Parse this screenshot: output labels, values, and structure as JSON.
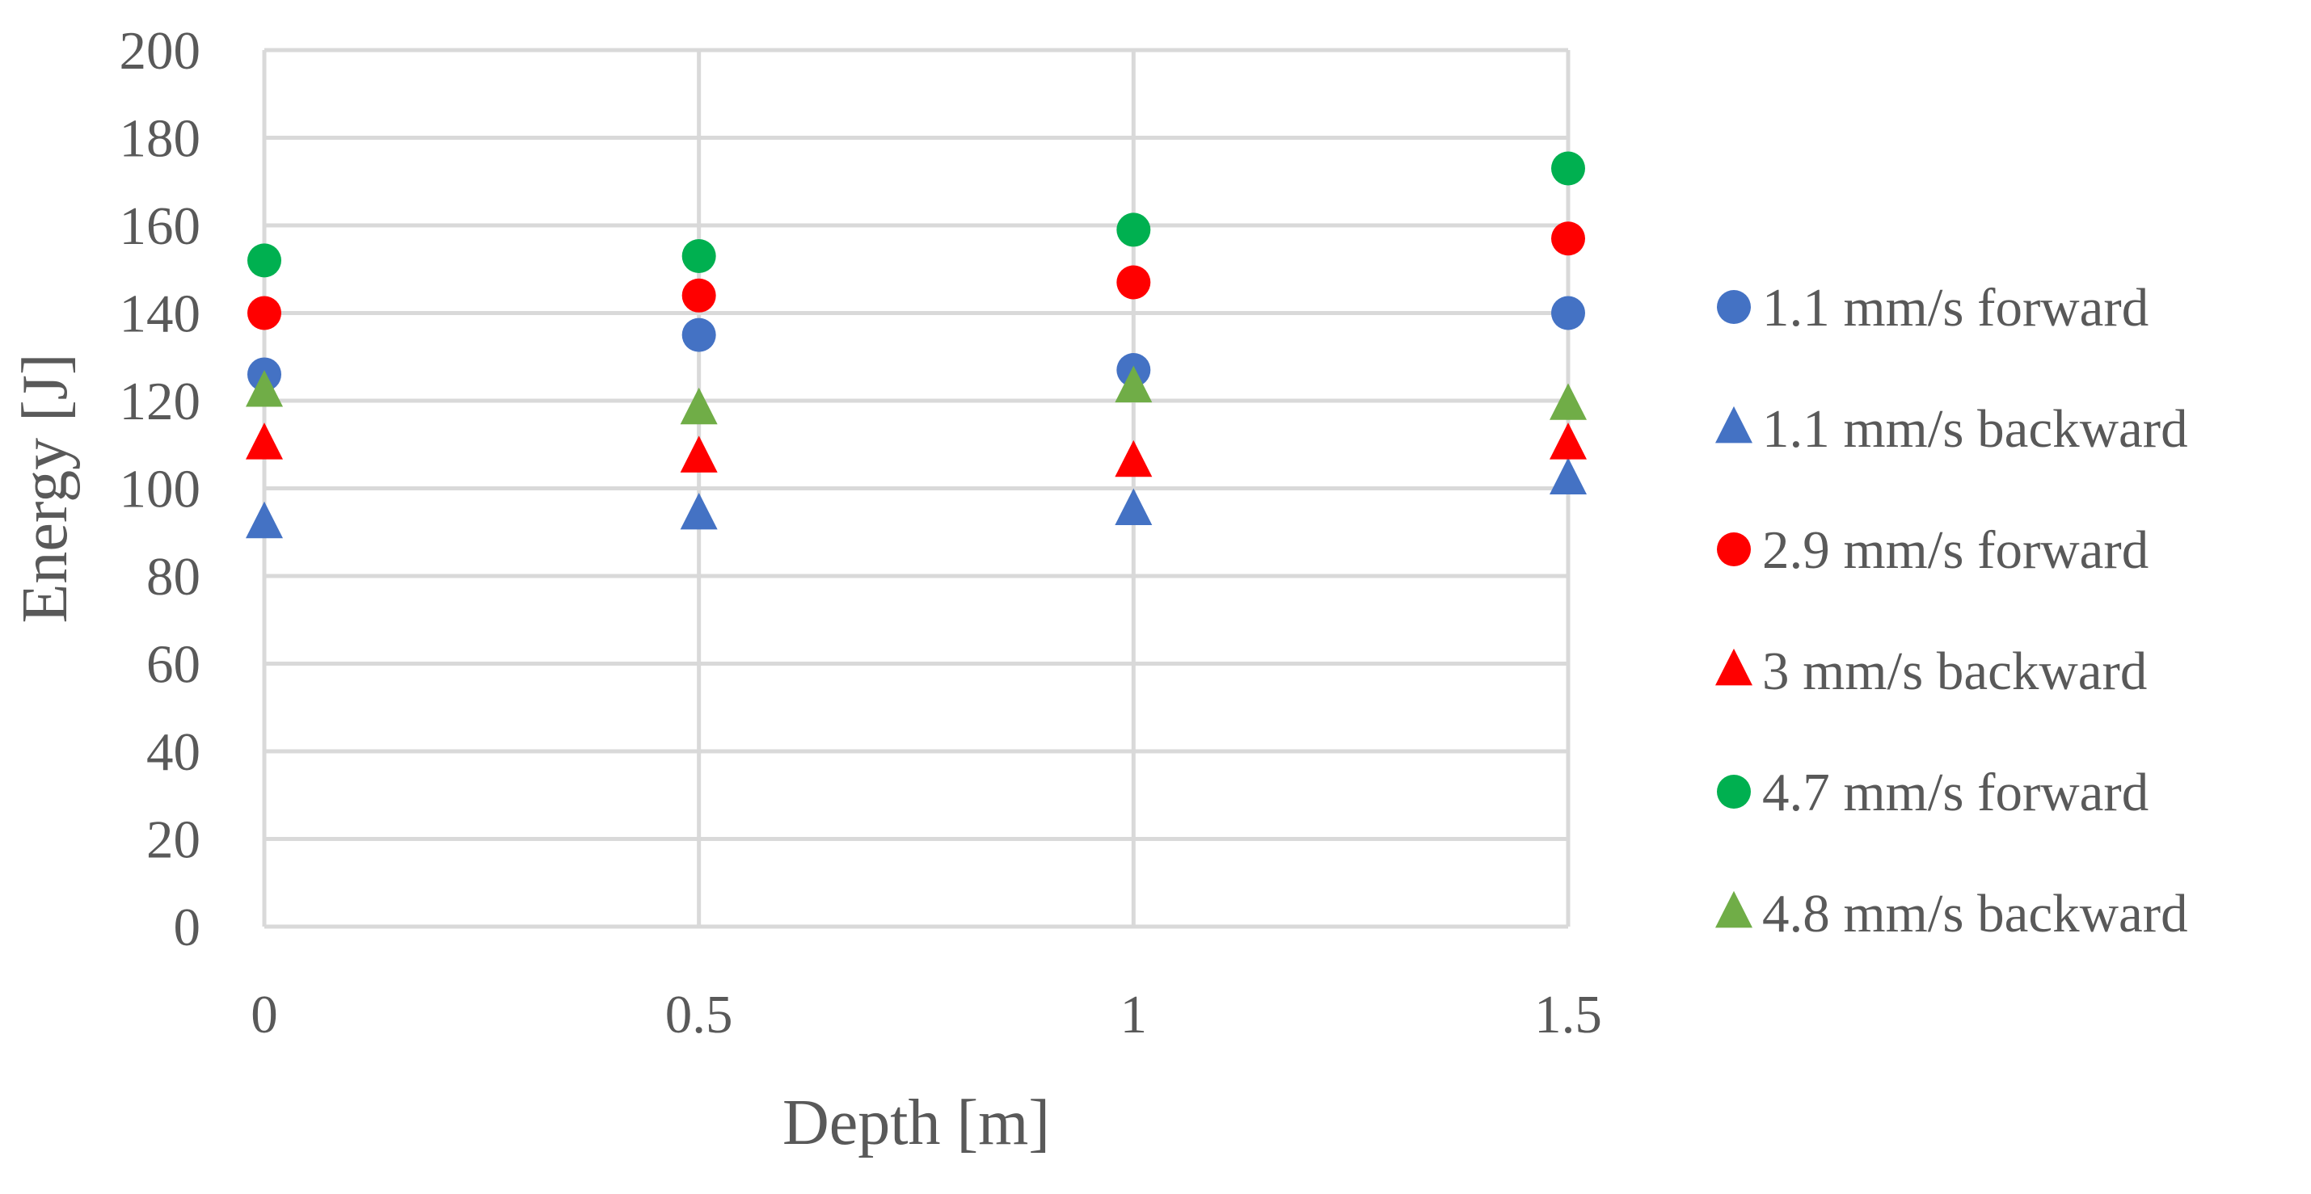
{
  "chart_data": {
    "type": "scatter",
    "title": "",
    "xlabel": "Depth [m]",
    "ylabel": "Energy [J]",
    "xlim": [
      0,
      1.5
    ],
    "ylim": [
      0,
      200
    ],
    "x_ticks": [
      0,
      0.5,
      1,
      1.5
    ],
    "x_tick_labels": [
      "0",
      "0.5",
      "1",
      "1.5"
    ],
    "y_ticks": [
      0,
      20,
      40,
      60,
      80,
      100,
      120,
      140,
      160,
      180,
      200
    ],
    "y_tick_labels": [
      "0",
      "20",
      "40",
      "60",
      "80",
      "100",
      "120",
      "140",
      "160",
      "180",
      "200"
    ],
    "grid": true,
    "legend_position": "right",
    "series": [
      {
        "name": "1.1 mm/s forward",
        "marker": "circle",
        "color": "#4472c4",
        "x": [
          0,
          0.5,
          1,
          1.5
        ],
        "y": [
          126,
          135,
          127,
          140
        ]
      },
      {
        "name": "1.1 mm/s backward",
        "marker": "triangle",
        "color": "#4472c4",
        "x": [
          0,
          0.5,
          1,
          1.5
        ],
        "y": [
          92,
          94,
          95,
          102
        ]
      },
      {
        "name": "2.9 mm/s forward",
        "marker": "circle",
        "color": "#ff0000",
        "x": [
          0,
          0.5,
          1,
          1.5
        ],
        "y": [
          140,
          144,
          147,
          157
        ]
      },
      {
        "name": "3 mm/s backward",
        "marker": "triangle",
        "color": "#ff0000",
        "x": [
          0,
          0.5,
          1,
          1.5
        ],
        "y": [
          110,
          107,
          106,
          110
        ]
      },
      {
        "name": "4.7 mm/s forward",
        "marker": "circle",
        "color": "#00b050",
        "x": [
          0,
          0.5,
          1,
          1.5
        ],
        "y": [
          152,
          153,
          159,
          173
        ]
      },
      {
        "name": "4.8 mm/s backward",
        "marker": "triangle",
        "color": "#70ad47",
        "x": [
          0,
          0.5,
          1,
          1.5
        ],
        "y": [
          122,
          118,
          123,
          119
        ]
      }
    ]
  }
}
